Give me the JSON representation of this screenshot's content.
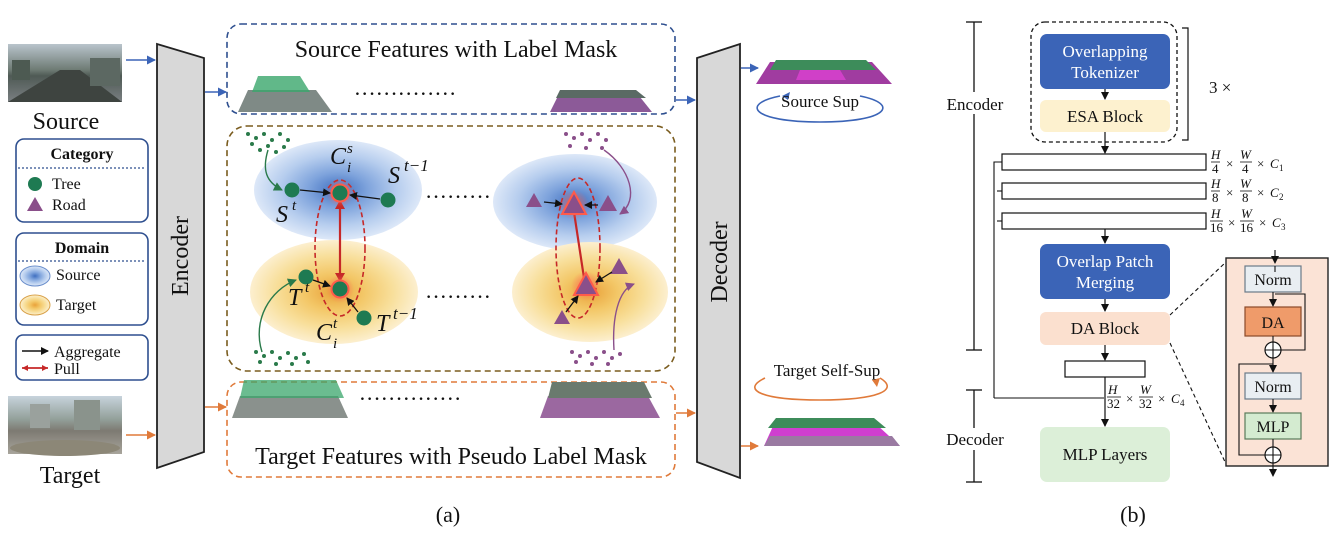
{
  "panel_a": {
    "caption": "(a)",
    "source_label": "Source",
    "target_label": "Target",
    "encoder_label": "Encoder",
    "decoder_label": "Decoder",
    "source_features_title": "Source Features with Label Mask",
    "target_features_title": "Target Features with Pseudo Label Mask",
    "source_sup_label": "Source Sup",
    "target_selfsup_label": "Target Self-Sup",
    "category_legend": {
      "title": "Category",
      "items": [
        "Tree",
        "Road"
      ]
    },
    "domain_legend": {
      "title": "Domain",
      "items": [
        "Source",
        "Target"
      ]
    },
    "arrow_legend": {
      "items": [
        "Aggregate",
        "Pull"
      ]
    },
    "math": {
      "c_s": "C",
      "c_s_sup": "s",
      "c_s_sub": "i",
      "s_prev": "S",
      "s_prev_sup": "t−1",
      "s_t": "S",
      "s_t_sup": "t",
      "t_t": "T",
      "t_t_sup": "t",
      "c_t": "C",
      "c_t_sup": "t",
      "c_t_sub": "i",
      "t_prev": "T",
      "t_prev_sup": "t−1"
    },
    "colors": {
      "source_dashed": "#2e4f8f",
      "target_dashed": "#e07a3a",
      "middle_dashed": "#7a5c1e",
      "tree": "#1e7a52",
      "road": "#8a4f8a",
      "pull": "#c62828"
    }
  },
  "panel_b": {
    "caption": "(b)",
    "encoder_label": "Encoder",
    "decoder_label": "Decoder",
    "repeat_label": "3 ×",
    "blocks": {
      "overlapping_tokenizer": [
        "Overlapping",
        "Tokenizer"
      ],
      "esa_block": "ESA Block",
      "overlap_patch_merging": [
        "Overlap Patch",
        "Merging"
      ],
      "da_block": "DA Block",
      "mlp_layers": "MLP Layers"
    },
    "feature_dims": [
      {
        "h": "H",
        "hd": "4",
        "w": "W",
        "wd": "4",
        "c": "C",
        "cs": "1"
      },
      {
        "h": "H",
        "hd": "8",
        "w": "W",
        "wd": "8",
        "c": "C",
        "cs": "2"
      },
      {
        "h": "H",
        "hd": "16",
        "w": "W",
        "wd": "16",
        "c": "C",
        "cs": "3"
      },
      {
        "h": "H",
        "hd": "32",
        "w": "W",
        "wd": "32",
        "c": "C",
        "cs": "4"
      }
    ],
    "da_detail": [
      "Norm",
      "DA",
      "Norm",
      "MLP"
    ],
    "colors": {
      "blue_block": "#3b64b7",
      "esa_fill": "#fdf1cf",
      "da_fill": "#fbe0cf",
      "mlp_fill": "#dcefd8",
      "detail_bg": "#fbe3d6"
    }
  }
}
